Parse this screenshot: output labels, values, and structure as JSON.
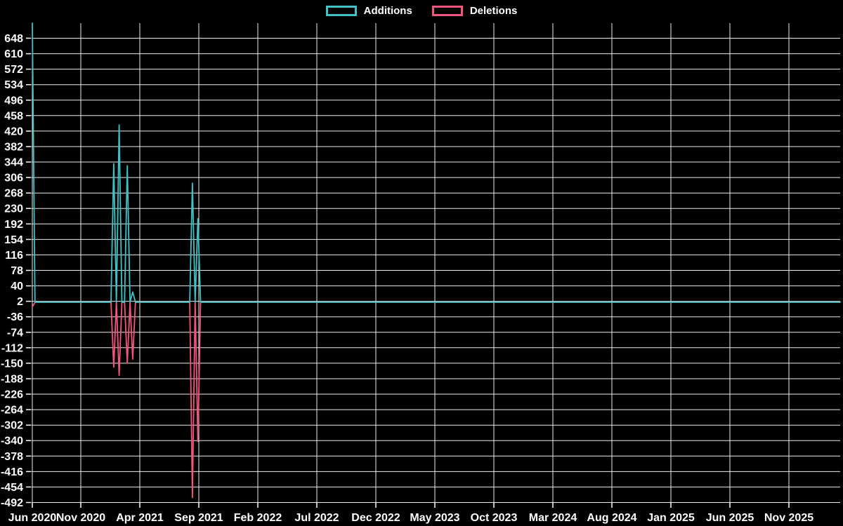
{
  "colors": {
    "background": "#000000",
    "grid": "#ececec",
    "axis_tick": "#ffffff",
    "label_text": "#ffffff",
    "additions": "#41c1c4",
    "deletions": "#f2567c"
  },
  "legend": {
    "items": [
      {
        "label": "Additions",
        "color": "#41c1c4"
      },
      {
        "label": "Deletions",
        "color": "#f2567c"
      }
    ]
  },
  "chart_data": {
    "type": "line",
    "title": "",
    "xlabel": "",
    "ylabel": "",
    "grid": true,
    "legend_position": "top-center",
    "x_tick_labels": [
      "Jun 2020",
      "Nov 2020",
      "Apr 2021",
      "Sep 2021",
      "Feb 2022",
      "Jul 2022",
      "Dec 2022",
      "May 2023",
      "Oct 2023",
      "Mar 2024",
      "Aug 2024",
      "Jan 2025",
      "Jun 2025",
      "Nov 2025"
    ],
    "y_ticks": [
      648,
      610,
      572,
      534,
      496,
      458,
      420,
      382,
      344,
      306,
      268,
      230,
      192,
      154,
      116,
      78,
      40,
      2,
      -36,
      -74,
      -112,
      -150,
      -188,
      -226,
      -264,
      -302,
      -340,
      -378,
      -416,
      -454,
      -492
    ],
    "ylim": [
      -503,
      686
    ],
    "baseline_value": 0,
    "series": [
      {
        "name": "Additions",
        "color": "#41c1c4",
        "baseline": 0,
        "spikes": [
          {
            "date": "2020-06-28",
            "value": 685
          },
          {
            "date": "2021-01-23",
            "value": 340
          },
          {
            "date": "2021-02-07",
            "value": 435
          },
          {
            "date": "2021-03-01",
            "value": 335
          },
          {
            "date": "2021-03-11",
            "value": 25
          },
          {
            "date": "2021-08-18",
            "value": 292
          },
          {
            "date": "2021-08-27",
            "value": 205
          }
        ]
      },
      {
        "name": "Deletions",
        "color": "#f2567c",
        "baseline": 0,
        "spikes": [
          {
            "date": "2020-06-28",
            "value": -12
          },
          {
            "date": "2021-01-23",
            "value": -160
          },
          {
            "date": "2021-02-07",
            "value": -180
          },
          {
            "date": "2021-03-01",
            "value": -150
          },
          {
            "date": "2021-03-11",
            "value": -140
          },
          {
            "date": "2021-08-18",
            "value": -480
          },
          {
            "date": "2021-08-27",
            "value": -342
          }
        ]
      }
    ]
  }
}
